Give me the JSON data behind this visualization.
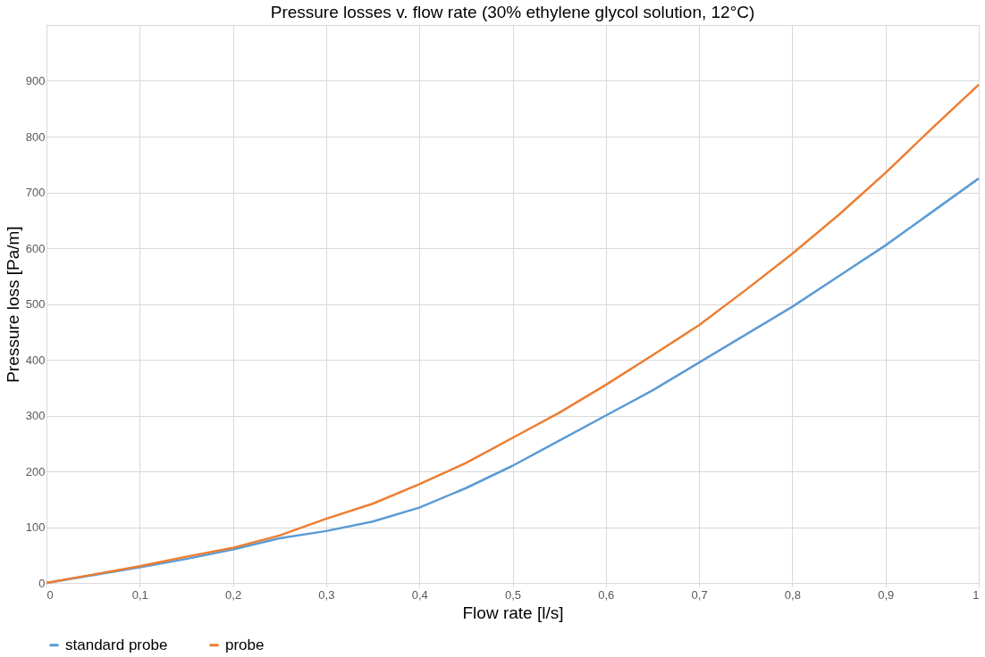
{
  "chart_data": {
    "type": "line",
    "title": "Pressure losses v. flow rate (30% ethylene glycol solution, 12°C)",
    "xlabel": "Flow rate [l/s]",
    "ylabel": "Pressure loss [Pa/m]",
    "x": [
      0,
      0.05,
      0.1,
      0.15,
      0.2,
      0.25,
      0.3,
      0.35,
      0.4,
      0.45,
      0.5,
      0.55,
      0.6,
      0.65,
      0.7,
      0.75,
      0.8,
      0.85,
      0.9,
      0.95,
      1
    ],
    "series": [
      {
        "name": "standard probe",
        "color": "#5b9bd5",
        "values": [
          0,
          14,
          28,
          43,
          60,
          80,
          93,
          110,
          135,
          170,
          210,
          255,
          300,
          345,
          395,
          445,
          495,
          550,
          605,
          665,
          725
        ]
      },
      {
        "name": "probe",
        "color": "#ed7d31",
        "values": [
          0,
          15,
          30,
          47,
          63,
          85,
          115,
          142,
          177,
          215,
          260,
          305,
          355,
          408,
          462,
          525,
          590,
          660,
          735,
          815,
          893
        ]
      }
    ],
    "xlim": [
      0,
      1
    ],
    "xticks": [
      0,
      {
        "value": 0.1,
        "label": "0,1"
      },
      {
        "value": 0.2,
        "label": "0,2"
      },
      {
        "value": 0.3,
        "label": "0,3"
      },
      {
        "value": 0.4,
        "label": "0,4"
      },
      {
        "value": 0.5,
        "label": "0,5"
      },
      {
        "value": 0.6,
        "label": "0,6"
      },
      {
        "value": 0.7,
        "label": "0,7"
      },
      {
        "value": 0.8,
        "label": "0,8"
      },
      {
        "value": 0.9,
        "label": "0,9"
      },
      1
    ],
    "ylim": [
      0,
      1000
    ],
    "yticks": [
      0,
      100,
      200,
      300,
      400,
      500,
      600,
      700,
      800,
      900,
      {
        "value": 1000,
        "label": null
      }
    ],
    "grid": true,
    "legend": "bottom",
    "marker": "none",
    "line_style": "solid"
  }
}
